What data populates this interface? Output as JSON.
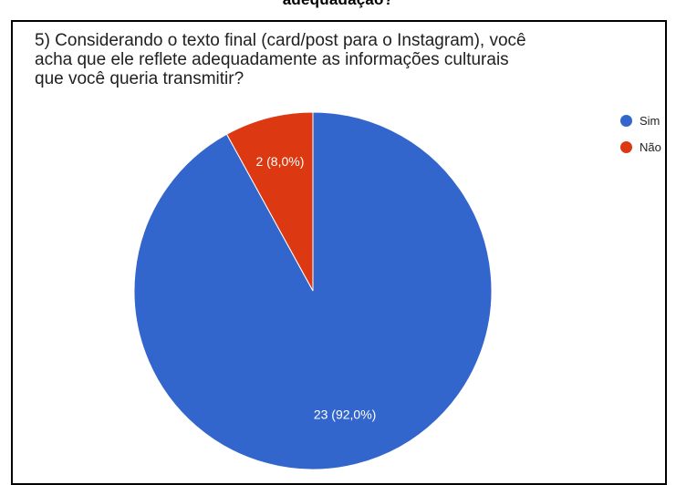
{
  "header": {
    "clipped_heading": "adequadação?"
  },
  "chart_data": {
    "type": "pie",
    "title": "5)  Considerando o texto final (card/post para o Instagram), você acha que ele reflete adequadamente as informações culturais que você queria transmitir?",
    "title_lines": [
      "5)  Considerando o texto final (card/post para o Instagram), você",
      "acha que ele reflete adequadamente as informações culturais",
      "que você queria transmitir?"
    ],
    "categories": [
      "Sim",
      "Não"
    ],
    "values": [
      23,
      2
    ],
    "percentages": [
      92.0,
      8.0
    ],
    "labels": [
      "23 (92,0%)",
      "2 (8,0%)"
    ],
    "colors": [
      "#3366CC",
      "#DC3912"
    ],
    "legend_position": "right"
  }
}
